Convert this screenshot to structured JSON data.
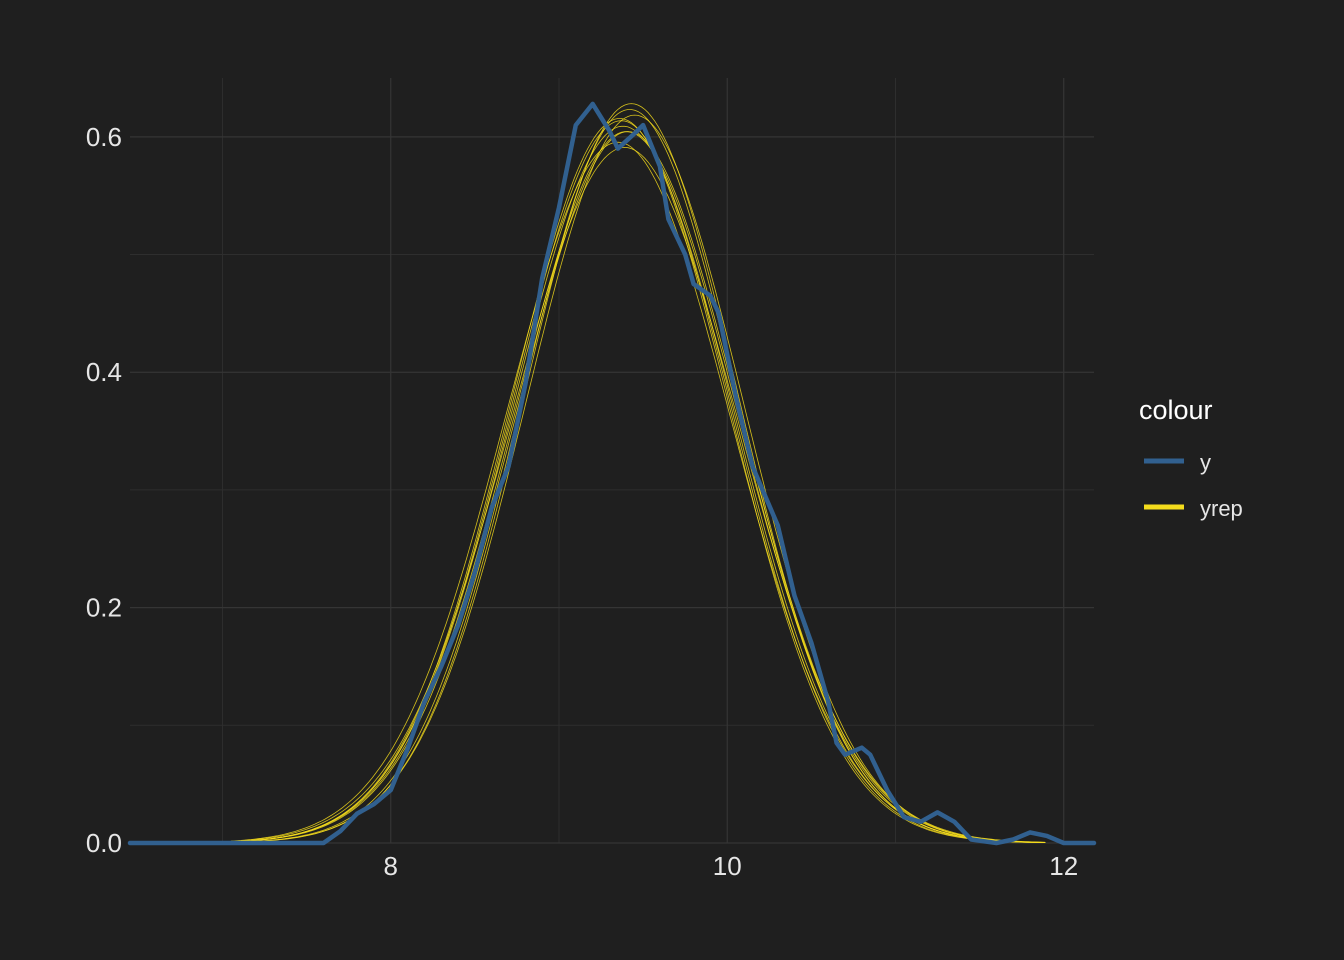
{
  "chart_data": {
    "type": "line",
    "title": "",
    "xlabel": "",
    "ylabel": "",
    "xlim": [
      6.45,
      12.18
    ],
    "ylim": [
      0,
      0.65
    ],
    "x_ticks": [
      8,
      10,
      12
    ],
    "x_tick_labels": [
      "8",
      "10",
      "12"
    ],
    "y_ticks": [
      0.0,
      0.2,
      0.4,
      0.6
    ],
    "y_tick_labels": [
      "0.0",
      "0.2",
      "0.4",
      "0.6"
    ],
    "grid": true,
    "legend": {
      "title": "colour",
      "position": "right",
      "entries": [
        {
          "label": "y",
          "color": "#31608f"
        },
        {
          "label": "yrep",
          "color": "#f4dc1c"
        }
      ]
    },
    "series": [
      {
        "name": "y",
        "color": "#31608f",
        "points": [
          [
            6.45,
            0.0
          ],
          [
            7.6,
            0.0
          ],
          [
            7.7,
            0.01
          ],
          [
            7.8,
            0.025
          ],
          [
            7.9,
            0.033
          ],
          [
            8.0,
            0.045
          ],
          [
            8.1,
            0.08
          ],
          [
            8.2,
            0.12
          ],
          [
            8.3,
            0.15
          ],
          [
            8.4,
            0.185
          ],
          [
            8.5,
            0.23
          ],
          [
            8.6,
            0.285
          ],
          [
            8.7,
            0.32
          ],
          [
            8.8,
            0.39
          ],
          [
            8.9,
            0.48
          ],
          [
            9.0,
            0.54
          ],
          [
            9.1,
            0.61
          ],
          [
            9.2,
            0.628
          ],
          [
            9.3,
            0.605
          ],
          [
            9.35,
            0.59
          ],
          [
            9.45,
            0.603
          ],
          [
            9.5,
            0.61
          ],
          [
            9.6,
            0.575
          ],
          [
            9.65,
            0.53
          ],
          [
            9.75,
            0.5
          ],
          [
            9.8,
            0.475
          ],
          [
            9.9,
            0.465
          ],
          [
            9.95,
            0.45
          ],
          [
            10.05,
            0.38
          ],
          [
            10.15,
            0.32
          ],
          [
            10.3,
            0.27
          ],
          [
            10.4,
            0.21
          ],
          [
            10.5,
            0.17
          ],
          [
            10.6,
            0.12
          ],
          [
            10.65,
            0.085
          ],
          [
            10.7,
            0.075
          ],
          [
            10.8,
            0.081
          ],
          [
            10.85,
            0.075
          ],
          [
            10.95,
            0.045
          ],
          [
            11.05,
            0.022
          ],
          [
            11.15,
            0.018
          ],
          [
            11.25,
            0.026
          ],
          [
            11.35,
            0.018
          ],
          [
            11.45,
            0.003
          ],
          [
            11.6,
            0.0
          ],
          [
            11.7,
            0.003
          ],
          [
            11.8,
            0.009
          ],
          [
            11.9,
            0.006
          ],
          [
            12.0,
            0.0
          ],
          [
            12.18,
            0.0
          ]
        ]
      }
    ],
    "yrep_distribution": {
      "label": "yrep",
      "color": "#f4dc1c",
      "draws": 10,
      "range": [
        7.05,
        11.9
      ],
      "means": [
        9.38,
        9.42,
        9.35,
        9.4,
        9.45,
        9.37,
        9.43,
        9.39,
        9.41,
        9.36
      ],
      "sds": [
        0.655,
        0.64,
        0.67,
        0.66,
        0.645,
        0.65,
        0.635,
        0.675,
        0.66,
        0.648
      ]
    }
  }
}
